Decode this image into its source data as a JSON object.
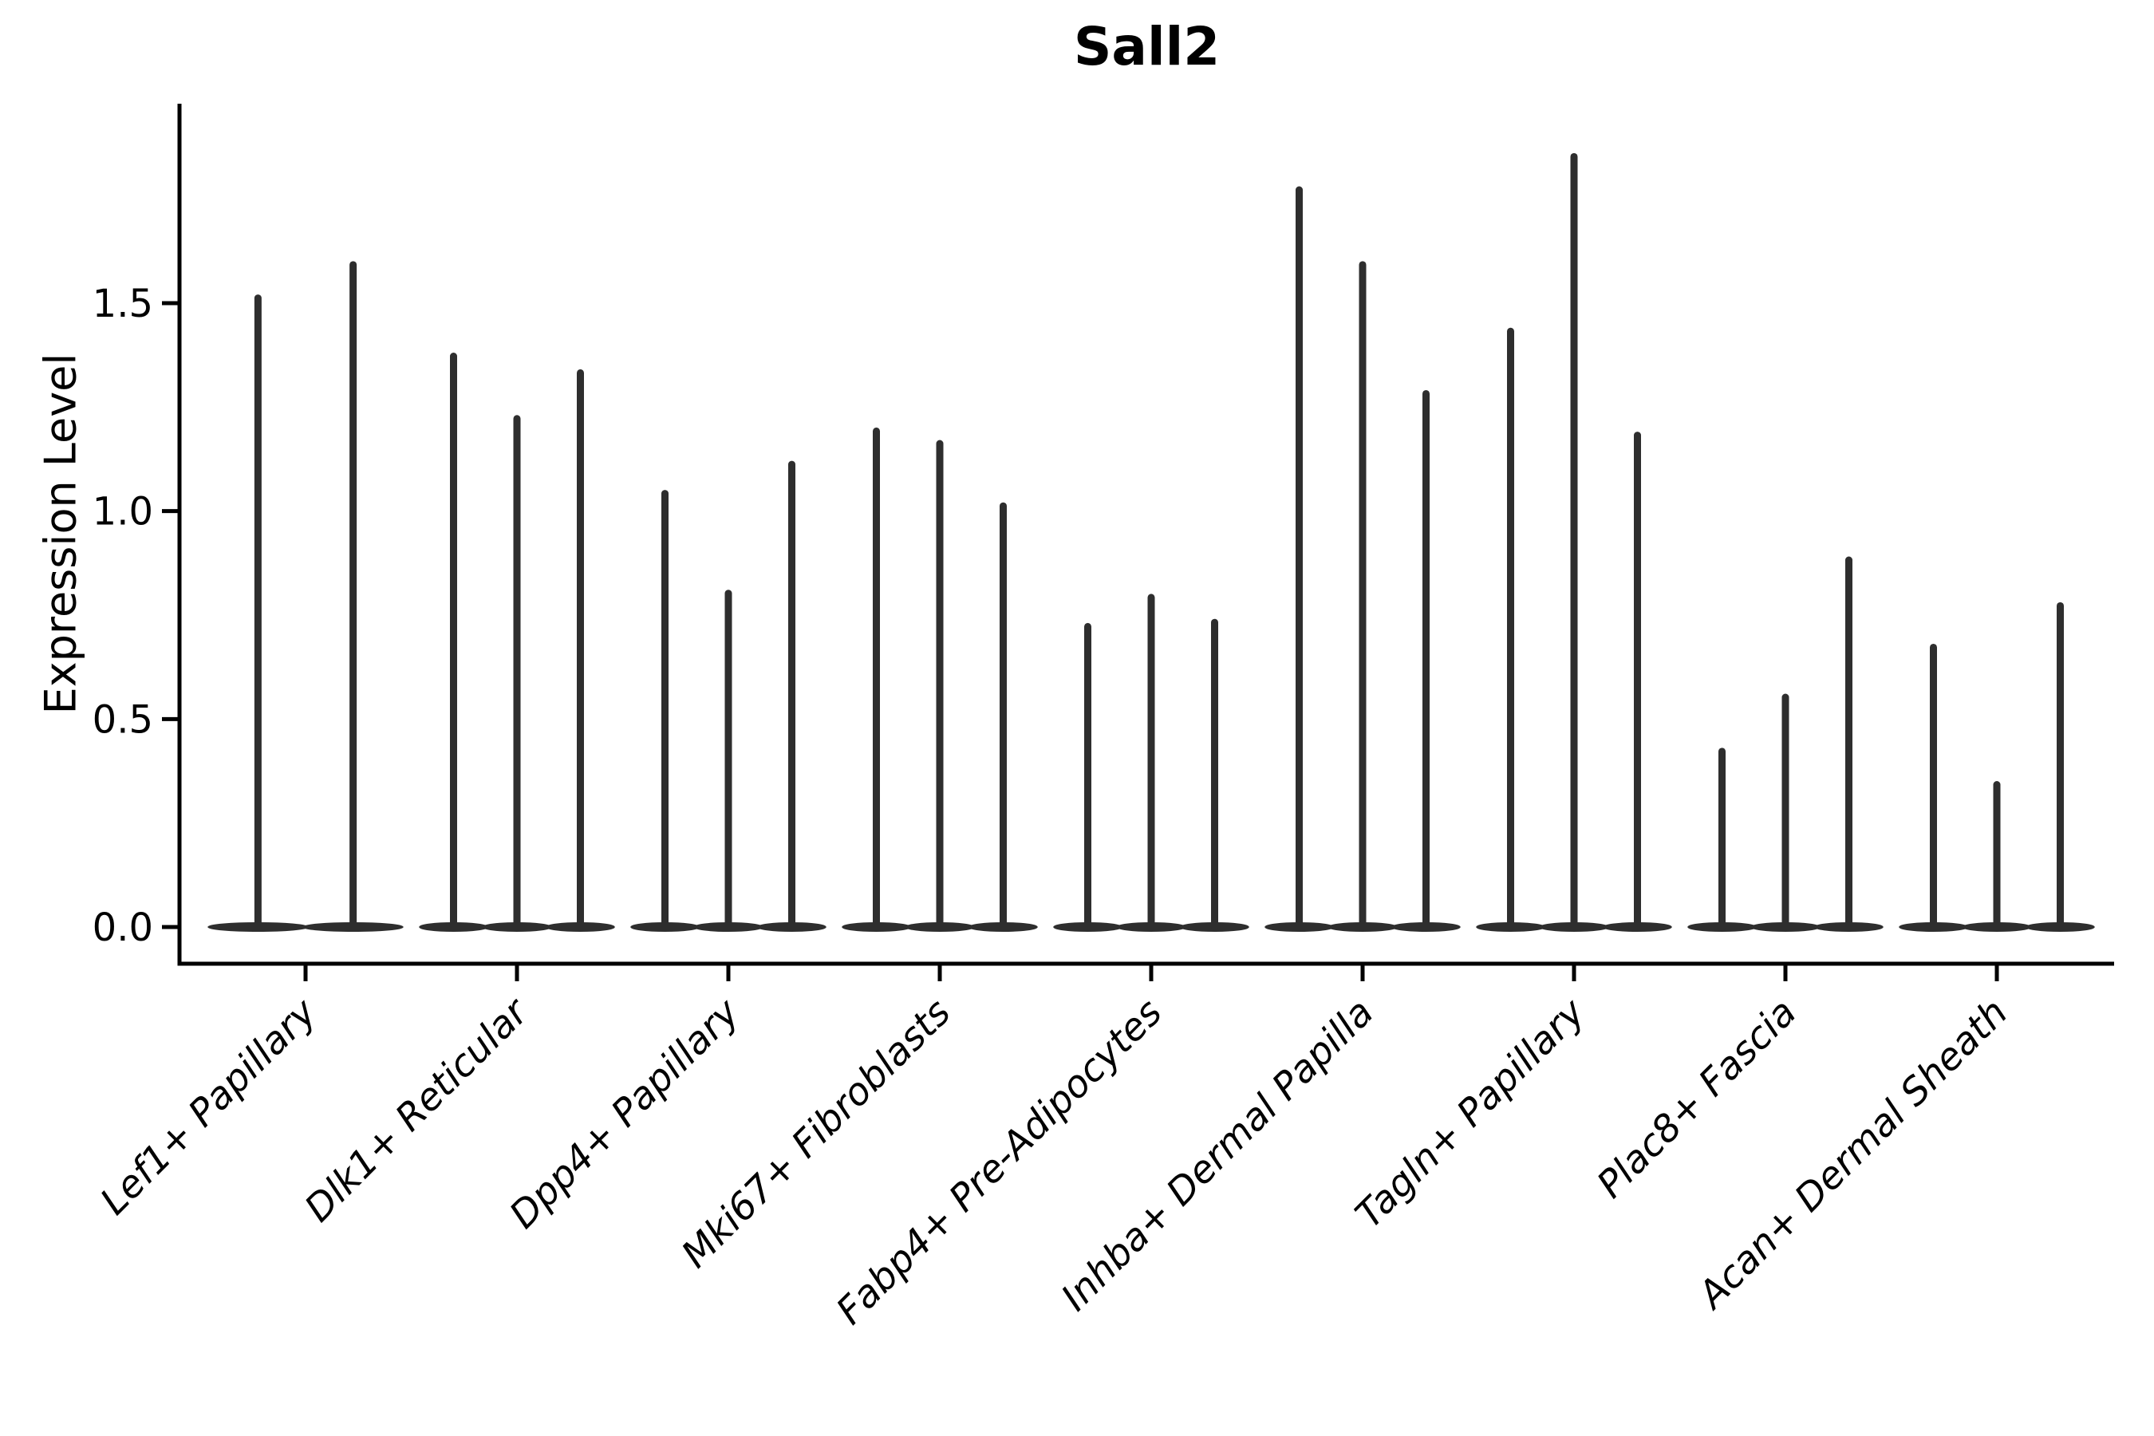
{
  "title": "Sall2",
  "ylabel": "Expression Level",
  "colors": {
    "violin": "#2e2e2e",
    "axis": "#000000",
    "text": "#000000",
    "background": "#ffffff"
  },
  "chart_data": {
    "type": "violin",
    "title": "Sall2",
    "xlabel": "",
    "ylabel": "Expression Level",
    "ylim": [
      -0.09,
      1.98
    ],
    "yticks": [
      0.0,
      0.5,
      1.0,
      1.5
    ],
    "ytick_labels": [
      "0.0",
      "0.5",
      "1.0",
      "1.5"
    ],
    "grid": false,
    "legend_position": "none",
    "categories": [
      "Lef1+ Papillary",
      "Dlk1+ Reticular",
      "Dpp4+ Papillary",
      "Mki67+ Fibroblasts",
      "Fabp4+ Pre-Adipocytes",
      "Inhba+ Dermal Papilla",
      "Tagln+ Papillary",
      "Plac8+ Fascia",
      "Acan+ Dermal Sheath"
    ],
    "violins": [
      {
        "category": "Lef1+ Papillary",
        "maxima": [
          1.52,
          1.6
        ],
        "offsets": [
          -0.225,
          0.225
        ],
        "violin_width": 0.45,
        "baseline": 0.0
      },
      {
        "category": "Dlk1+ Reticular",
        "maxima": [
          1.38,
          1.23,
          1.34
        ],
        "offsets": [
          -0.3,
          0.0,
          0.3
        ],
        "violin_width": 0.3,
        "baseline": 0.0
      },
      {
        "category": "Dpp4+ Papillary",
        "maxima": [
          1.05,
          0.81,
          1.12
        ],
        "offsets": [
          -0.3,
          0.0,
          0.3
        ],
        "violin_width": 0.3,
        "baseline": 0.0
      },
      {
        "category": "Mki67+ Fibroblasts",
        "maxima": [
          1.2,
          1.17,
          1.02
        ],
        "offsets": [
          -0.3,
          0.0,
          0.3
        ],
        "violin_width": 0.3,
        "baseline": 0.0
      },
      {
        "category": "Fabp4+ Pre-Adipocytes",
        "maxima": [
          0.73,
          0.8,
          0.74
        ],
        "offsets": [
          -0.3,
          0.0,
          0.3
        ],
        "violin_width": 0.3,
        "baseline": 0.0
      },
      {
        "category": "Inhba+ Dermal Papilla",
        "maxima": [
          1.78,
          1.6,
          1.29
        ],
        "offsets": [
          -0.3,
          0.0,
          0.3
        ],
        "violin_width": 0.3,
        "baseline": 0.0
      },
      {
        "category": "Tagln+ Papillary",
        "maxima": [
          1.44,
          1.86,
          1.19
        ],
        "offsets": [
          -0.3,
          0.0,
          0.3
        ],
        "violin_width": 0.3,
        "baseline": 0.0
      },
      {
        "category": "Plac8+ Fascia",
        "maxima": [
          0.43,
          0.56,
          0.89
        ],
        "offsets": [
          -0.3,
          0.0,
          0.3
        ],
        "violin_width": 0.3,
        "baseline": 0.0
      },
      {
        "category": "Acan+ Dermal Sheath",
        "maxima": [
          0.68,
          0.35,
          0.78
        ],
        "offsets": [
          -0.3,
          0.0,
          0.3
        ],
        "violin_width": 0.3,
        "baseline": 0.0
      }
    ]
  }
}
